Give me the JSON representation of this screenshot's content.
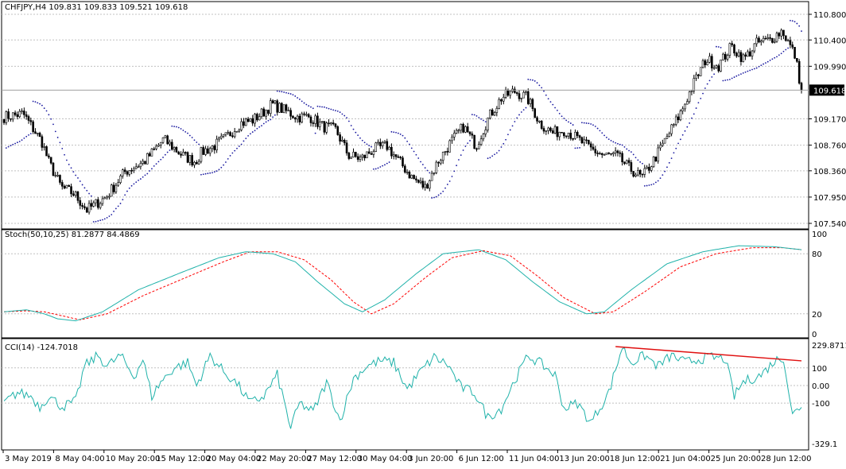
{
  "colors": {
    "background": "#ffffff",
    "grid": "#c0c0c0",
    "frame": "#000000",
    "candle": "#000000",
    "sar": "#1a1aa0",
    "stoch_main": "#20b2aa",
    "stoch_signal": "#ff0000",
    "cci": "#20b2aa",
    "trendline": "#e01010",
    "price_tag_bg": "#000000",
    "price_tag_text": "#ffffff"
  },
  "chart_data": [
    {
      "type": "candlestick",
      "title": "CHFJPY,H4",
      "ohlc_label": "109.831 109.833 109.521 109.618",
      "ohlc": {
        "open": 109.831,
        "high": 109.833,
        "low": 109.521,
        "close": 109.618
      },
      "last_price_label": "109.618",
      "y_tick_labels": [
        "110.800",
        "110.400",
        "109.990",
        "109.618",
        "109.170",
        "108.760",
        "108.360",
        "107.950",
        "107.540"
      ],
      "ylim": [
        107.54,
        110.8
      ],
      "indicator_overlay": "Parabolic SAR",
      "grid": true,
      "close_path": {
        "x_index": [
          0,
          6,
          12,
          14,
          18,
          22,
          26,
          32,
          38,
          44,
          50,
          56,
          60,
          62,
          66,
          70,
          74,
          78,
          82,
          84,
          88,
          92,
          96,
          100,
          104,
          108,
          112,
          116,
          120,
          124,
          128,
          132,
          136,
          140,
          144,
          148,
          152,
          156,
          160,
          164,
          168,
          172,
          176,
          180,
          184,
          188,
          192,
          196,
          200,
          204,
          208,
          212,
          216,
          220,
          224,
          228,
          232,
          236,
          240,
          244,
          248,
          250
        ],
        "values": [
          109.2,
          109.25,
          108.8,
          108.5,
          108.1,
          108.0,
          107.75,
          107.95,
          108.35,
          108.5,
          108.85,
          108.6,
          108.5,
          108.65,
          108.75,
          108.9,
          109.1,
          109.15,
          109.3,
          109.4,
          109.3,
          109.2,
          109.2,
          109.05,
          109.0,
          108.6,
          108.55,
          108.7,
          108.75,
          108.5,
          108.25,
          108.1,
          108.5,
          108.8,
          109.05,
          108.75,
          109.2,
          109.5,
          109.6,
          109.5,
          109.1,
          108.95,
          109.0,
          108.85,
          108.7,
          108.6,
          108.6,
          108.4,
          108.25,
          108.55,
          108.9,
          109.25,
          109.7,
          110.1,
          110.0,
          110.3,
          110.1,
          110.35,
          110.4,
          110.55,
          110.15,
          109.62
        ]
      },
      "sar_note": "dotted Parabolic SAR above/below candles",
      "current_marker": "109.618"
    },
    {
      "type": "line",
      "title": "Stoch(50,10,25) 81.2877 84.4869",
      "y_tick_labels": [
        "100",
        "80",
        "20",
        "0"
      ],
      "ylim": [
        0,
        100
      ],
      "levels": [
        20,
        80
      ],
      "series": [
        {
          "name": "Main",
          "values_by_bar_index": [
            [
              0,
              22
            ],
            [
              10,
              24
            ],
            [
              18,
              20
            ],
            [
              24,
              15
            ],
            [
              32,
              13
            ],
            [
              44,
              22
            ],
            [
              60,
              44
            ],
            [
              80,
              62
            ],
            [
              96,
              76
            ],
            [
              108,
              82
            ],
            [
              120,
              80
            ],
            [
              130,
              72
            ],
            [
              140,
              52
            ],
            [
              152,
              30
            ],
            [
              160,
              22
            ],
            [
              170,
              34
            ],
            [
              184,
              60
            ],
            [
              196,
              80
            ],
            [
              212,
              84
            ],
            [
              224,
              74
            ],
            [
              236,
              52
            ],
            [
              248,
              32
            ],
            [
              260,
              20
            ],
            [
              268,
              22
            ],
            [
              280,
              44
            ],
            [
              296,
              70
            ],
            [
              312,
              82
            ],
            [
              328,
              88
            ],
            [
              344,
              87
            ],
            [
              356,
              84
            ]
          ]
        },
        {
          "name": "Signal",
          "values_by_bar_index": [
            [
              0,
              22
            ],
            [
              10,
              23
            ],
            [
              18,
              22
            ],
            [
              26,
              18
            ],
            [
              34,
              14
            ],
            [
              46,
              20
            ],
            [
              62,
              38
            ],
            [
              82,
              57
            ],
            [
              98,
              72
            ],
            [
              110,
              82
            ],
            [
              122,
              82
            ],
            [
              134,
              74
            ],
            [
              146,
              54
            ],
            [
              156,
              32
            ],
            [
              164,
              20
            ],
            [
              174,
              30
            ],
            [
              188,
              56
            ],
            [
              200,
              76
            ],
            [
              214,
              83
            ],
            [
              226,
              78
            ],
            [
              238,
              58
            ],
            [
              250,
              36
            ],
            [
              264,
              20
            ],
            [
              272,
              22
            ],
            [
              286,
              42
            ],
            [
              302,
              67
            ],
            [
              318,
              80
            ],
            [
              334,
              86
            ],
            [
              348,
              86
            ],
            [
              356,
              84
            ]
          ]
        }
      ],
      "main_label": "81.2877",
      "signal_label": "84.4869"
    },
    {
      "type": "line",
      "title": "CCI(14) -124.7018",
      "y_tick_labels": [
        "229.8711",
        "100",
        "0.00",
        "-100",
        "-329.1"
      ],
      "ylim": [
        -329.1,
        229.8711
      ],
      "trendline": {
        "from": [
          273,
          229.8711
        ],
        "to": [
          356,
          140
        ]
      },
      "series": [
        {
          "name": "CCI",
          "values_by_bar_index": [
            [
              0,
              -100
            ],
            [
              6,
              -40
            ],
            [
              12,
              -60
            ],
            [
              16,
              -120
            ],
            [
              20,
              -60
            ],
            [
              26,
              -120
            ],
            [
              32,
              -90
            ],
            [
              36,
              110
            ],
            [
              42,
              170
            ],
            [
              46,
              110
            ],
            [
              52,
              170
            ],
            [
              58,
              50
            ],
            [
              62,
              150
            ],
            [
              66,
              -60
            ],
            [
              70,
              20
            ],
            [
              76,
              100
            ],
            [
              82,
              130
            ],
            [
              86,
              0
            ],
            [
              92,
              170
            ],
            [
              98,
              80
            ],
            [
              104,
              10
            ],
            [
              110,
              -100
            ],
            [
              116,
              -60
            ],
            [
              122,
              60
            ],
            [
              128,
              -240
            ],
            [
              132,
              -100
            ],
            [
              138,
              -150
            ],
            [
              144,
              20
            ],
            [
              150,
              -200
            ],
            [
              156,
              40
            ],
            [
              162,
              110
            ],
            [
              168,
              140
            ],
            [
              174,
              130
            ],
            [
              180,
              -20
            ],
            [
              186,
              80
            ],
            [
              192,
              160
            ],
            [
              198,
              120
            ],
            [
              204,
              -10
            ],
            [
              210,
              -40
            ],
            [
              216,
              -180
            ],
            [
              222,
              -130
            ],
            [
              228,
              30
            ],
            [
              234,
              170
            ],
            [
              240,
              120
            ],
            [
              246,
              60
            ],
            [
              250,
              -130
            ],
            [
              256,
              -100
            ],
            [
              262,
              -210
            ],
            [
              270,
              -40
            ],
            [
              276,
              220
            ],
            [
              280,
              130
            ],
            [
              286,
              170
            ],
            [
              292,
              110
            ],
            [
              298,
              170
            ],
            [
              304,
              130
            ],
            [
              310,
              150
            ],
            [
              316,
              160
            ],
            [
              322,
              150
            ],
            [
              326,
              -60
            ],
            [
              330,
              20
            ],
            [
              338,
              60
            ],
            [
              344,
              140
            ],
            [
              348,
              160
            ],
            [
              352,
              -170
            ],
            [
              356,
              -110
            ]
          ]
        }
      ],
      "value_label": "-124.7018"
    }
  ],
  "x_axis": {
    "labels": [
      "3 May 2019",
      "8 May 04:00",
      "10 May 20:00",
      "15 May 12:00",
      "20 May 04:00",
      "22 May 20:00",
      "27 May 12:00",
      "30 May 04:00",
      "3 Jun 20:00",
      "6 Jun 12:00",
      "11 Jun 04:00",
      "13 Jun 20:00",
      "18 Jun 12:00",
      "21 Jun 04:00",
      "25 Jun 20:00",
      "28 Jun 12:00"
    ]
  },
  "price_panel": {
    "header": "CHFJPY,H4  109.831 109.833 109.521 109.618"
  },
  "stoch_panel": {
    "header": "Stoch(50,10,25) 81.2877 84.4869"
  },
  "cci_panel": {
    "header": "CCI(14) -124.7018"
  }
}
